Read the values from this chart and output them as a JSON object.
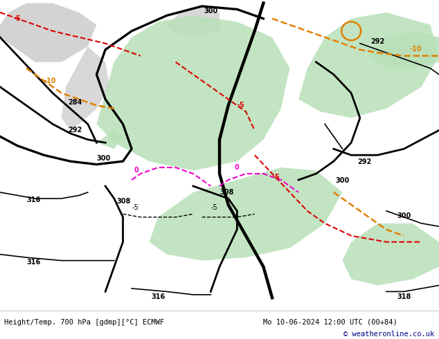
{
  "title_left": "Height/Temp. 700 hPa [gdmp][°C] ECMWF",
  "title_right": "Mo 10-06-2024 12:00 UTC (00+84)",
  "copyright": "© weatheronline.co.uk",
  "bg_color": "#ffffff",
  "map_bg": "#ffffff",
  "footer_bg": "#f0f0f0",
  "fig_width": 6.34,
  "fig_height": 4.9,
  "title_fontsize": 7.5,
  "copyright_fontsize": 7.5,
  "copyright_color": "#000080",
  "green": "#b8e0b8",
  "grey_land": "#c8c8c8",
  "black_lw": 2.0,
  "thin_lw": 1.2,
  "red_lw": 1.5,
  "orange_lw": 1.8
}
